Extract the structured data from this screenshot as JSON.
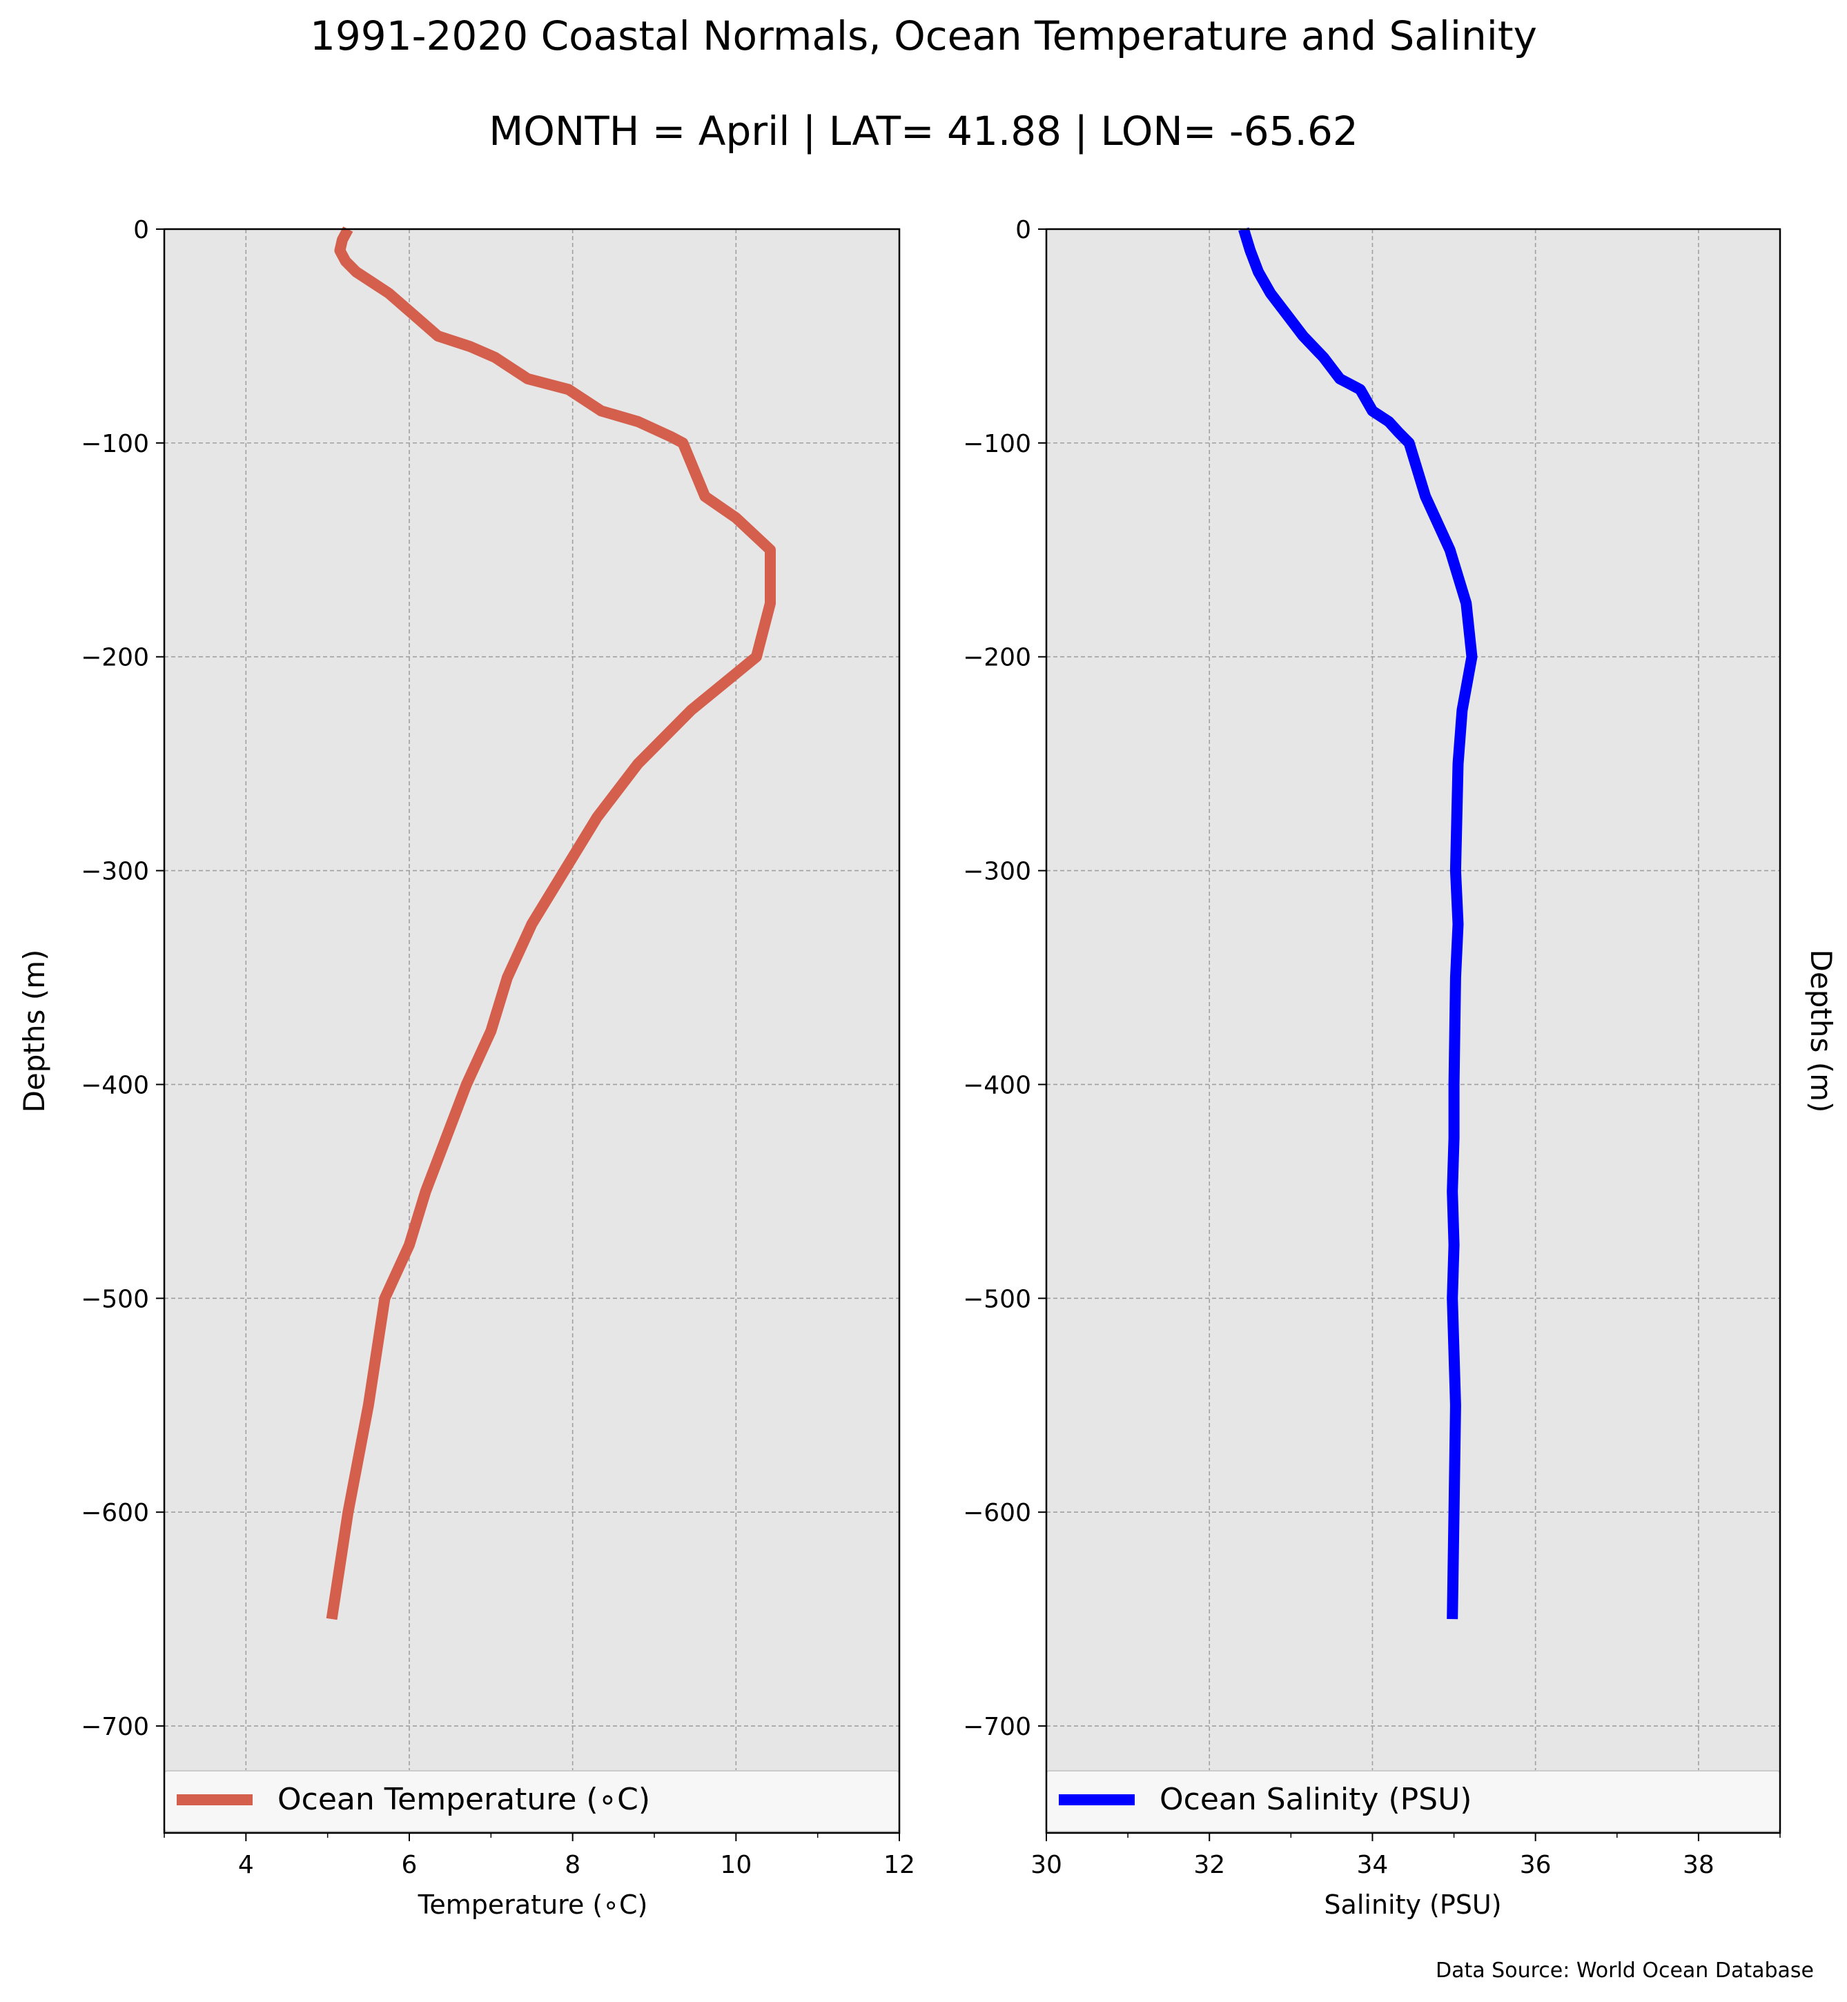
{
  "title": "1991-2020 Coastal Normals, Ocean Temperature and Salinity",
  "subtitle": "MONTH = April | LAT= 41.88 | LON= -65.62",
  "source_note": "Data Source: World Ocean Database",
  "chart_data": [
    {
      "type": "line",
      "xlabel": "Temperature (∘C)",
      "ylabel": "Depths (m)",
      "xlim": [
        3,
        12
      ],
      "ylim": [
        -750,
        0
      ],
      "xticks": [
        4,
        6,
        8,
        10,
        12
      ],
      "xtick_labels": [
        "4",
        "6",
        "8",
        "10",
        "12"
      ],
      "yticks": [
        0,
        -100,
        -200,
        -300,
        -400,
        -500,
        -600,
        -700
      ],
      "ytick_labels": [
        "0",
        "−100",
        "−200",
        "−300",
        "−400",
        "−500",
        "−600",
        "−700"
      ],
      "grid": true,
      "legend_position": "lower center",
      "series": [
        {
          "name": "Ocean Temperature (∘C)",
          "color": "#d45f4d",
          "x": [
            5.25,
            5.18,
            5.15,
            5.22,
            5.35,
            5.55,
            5.75,
            6.05,
            6.35,
            6.75,
            7.05,
            7.25,
            7.45,
            7.95,
            8.35,
            8.8,
            9.2,
            9.35,
            9.62,
            10.0,
            10.42,
            10.42,
            10.25,
            9.45,
            8.8,
            8.3,
            7.9,
            7.5,
            7.2,
            7.0,
            6.7,
            6.45,
            6.2,
            6.0,
            5.7,
            5.5,
            5.25,
            5.05
          ],
          "y": [
            0,
            -5,
            -10,
            -15,
            -20,
            -25,
            -30,
            -40,
            -50,
            -55,
            -60,
            -65,
            -70,
            -75,
            -85,
            -90,
            -97,
            -100,
            -125,
            -135,
            -150,
            -175,
            -200,
            -225,
            -250,
            -275,
            -300,
            -325,
            -350,
            -375,
            -400,
            -425,
            -450,
            -475,
            -500,
            -550,
            -600,
            -650
          ]
        }
      ]
    },
    {
      "type": "line",
      "xlabel": "Salinity (PSU)",
      "ylabel": "Depths (m)",
      "xlim": [
        30,
        39
      ],
      "ylim": [
        -750,
        0
      ],
      "xticks": [
        30,
        32,
        34,
        36,
        38
      ],
      "xtick_labels": [
        "30",
        "32",
        "34",
        "36",
        "38"
      ],
      "yticks": [
        0,
        -100,
        -200,
        -300,
        -400,
        -500,
        -600,
        -700
      ],
      "ytick_labels": [
        "0",
        "−100",
        "−200",
        "−300",
        "−400",
        "−500",
        "−600",
        "−700"
      ],
      "grid": true,
      "legend_position": "lower center",
      "series": [
        {
          "name": "Ocean Salinity (PSU)",
          "color": "#0000ff",
          "x": [
            32.42,
            32.5,
            32.6,
            32.75,
            32.95,
            33.15,
            33.4,
            33.6,
            33.7,
            33.85,
            34.0,
            34.2,
            34.32,
            34.45,
            34.65,
            34.95,
            35.15,
            35.22,
            35.1,
            35.05,
            35.02,
            35.05,
            35.02,
            35.0,
            35.0,
            34.98,
            35.0,
            34.98,
            35.02,
            35.0,
            34.98
          ],
          "y": [
            0,
            -10,
            -20,
            -30,
            -40,
            -50,
            -60,
            -70,
            -72,
            -75,
            -85,
            -90,
            -95,
            -100,
            -125,
            -150,
            -175,
            -200,
            -225,
            -250,
            -300,
            -325,
            -350,
            -400,
            -425,
            -450,
            -475,
            -500,
            -550,
            -600,
            -650
          ]
        }
      ]
    }
  ]
}
